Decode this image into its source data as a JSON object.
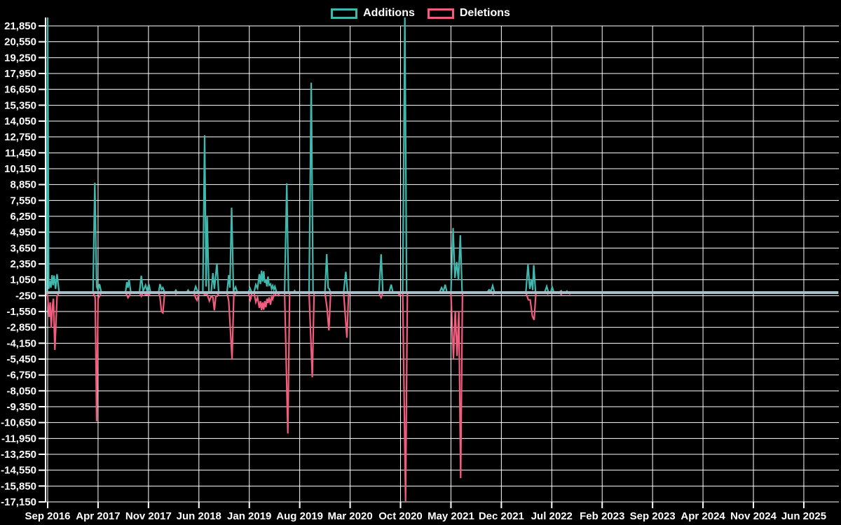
{
  "legend": {
    "items": [
      {
        "label": "Additions",
        "color": "#40b8ad"
      },
      {
        "label": "Deletions",
        "color": "#f25c7e"
      }
    ]
  },
  "chart_data": {
    "type": "line",
    "title": "",
    "background": "#000000",
    "grid_color": "#ffffff",
    "zero_line_color": "#a9bfc7",
    "x_axis": {
      "unit": "months since Sep 2016",
      "tick_labels": [
        "Sep 2016",
        "Apr 2017",
        "Nov 2017",
        "Jun 2018",
        "Jan 2019",
        "Aug 2019",
        "Mar 2020",
        "Oct 2020",
        "May 2021",
        "Dec 2021",
        "Jul 2022",
        "Feb 2023",
        "Sep 2023",
        "Apr 2024",
        "Nov 2024",
        "Jun 2025"
      ],
      "tick_month_index": [
        0,
        7,
        14,
        21,
        28,
        35,
        42,
        49,
        56,
        63,
        70,
        77,
        84,
        91,
        98,
        105
      ],
      "domain_months": [
        -0.3,
        109.8
      ]
    },
    "y_axis": {
      "min": -17150,
      "max": 21850,
      "step": 1300,
      "tick_values": [
        21850,
        20550,
        19250,
        17950,
        16650,
        15350,
        14050,
        12750,
        11450,
        10150,
        8850,
        7550,
        6250,
        4950,
        3650,
        2350,
        1050,
        -250,
        -1550,
        -2850,
        -4150,
        -5450,
        -6750,
        -8050,
        -9350,
        -10650,
        -11950,
        -13250,
        -14550,
        -15850,
        -17150
      ],
      "tick_labels": [
        "21,850",
        "20,550",
        "19,250",
        "17,950",
        "16,650",
        "15,350",
        "14,050",
        "12,750",
        "11,450",
        "10,150",
        "8,850",
        "7,550",
        "6,250",
        "4,950",
        "3,650",
        "2,350",
        "1,050",
        "-250",
        "-1,550",
        "-2,850",
        "-4,150",
        "-5,450",
        "-6,750",
        "-8,050",
        "-9,350",
        "-10,650",
        "-11,950",
        "-13,250",
        "-14,550",
        "-15,850",
        "-17,150"
      ]
    },
    "series": [
      {
        "name": "Additions",
        "color": "#40b8ad",
        "points": [
          [
            -0.3,
            0
          ],
          [
            -0.15,
            0
          ],
          [
            0,
            22550
          ],
          [
            0.15,
            300
          ],
          [
            0.3,
            950
          ],
          [
            0.45,
            400
          ],
          [
            0.6,
            1430
          ],
          [
            0.75,
            600
          ],
          [
            0.9,
            1400
          ],
          [
            1.1,
            300
          ],
          [
            1.3,
            1510
          ],
          [
            1.6,
            0
          ],
          [
            6.3,
            0
          ],
          [
            6.55,
            8990
          ],
          [
            6.8,
            500
          ],
          [
            7.0,
            200
          ],
          [
            7.2,
            700
          ],
          [
            7.45,
            0
          ],
          [
            10.8,
            0
          ],
          [
            11.0,
            860
          ],
          [
            11.15,
            400
          ],
          [
            11.3,
            1090
          ],
          [
            11.55,
            0
          ],
          [
            12.75,
            0
          ],
          [
            13.0,
            1380
          ],
          [
            13.25,
            100
          ],
          [
            13.6,
            600
          ],
          [
            13.8,
            150
          ],
          [
            14.05,
            700
          ],
          [
            14.3,
            0
          ],
          [
            15.4,
            0
          ],
          [
            15.6,
            700
          ],
          [
            15.8,
            250
          ],
          [
            16.0,
            400
          ],
          [
            16.25,
            0
          ],
          [
            17.6,
            0
          ],
          [
            17.8,
            200
          ],
          [
            18.0,
            0
          ],
          [
            19.3,
            0
          ],
          [
            19.5,
            200
          ],
          [
            19.7,
            0
          ],
          [
            20.3,
            0
          ],
          [
            20.55,
            500
          ],
          [
            20.8,
            150
          ],
          [
            21.05,
            0
          ],
          [
            21.55,
            0
          ],
          [
            21.8,
            12890
          ],
          [
            22.0,
            500
          ],
          [
            22.15,
            6200
          ],
          [
            22.4,
            0
          ],
          [
            22.7,
            0
          ],
          [
            22.95,
            1600
          ],
          [
            23.15,
            300
          ],
          [
            23.5,
            2400
          ],
          [
            23.75,
            0
          ],
          [
            24.9,
            0
          ],
          [
            25.15,
            1430
          ],
          [
            25.3,
            400
          ],
          [
            25.55,
            6960
          ],
          [
            25.8,
            100
          ],
          [
            26.1,
            460
          ],
          [
            26.35,
            0
          ],
          [
            27.85,
            0
          ],
          [
            28.1,
            360
          ],
          [
            28.35,
            0
          ],
          [
            28.65,
            0
          ],
          [
            28.9,
            650
          ],
          [
            29.15,
            350
          ],
          [
            29.4,
            1510
          ],
          [
            29.55,
            700
          ],
          [
            29.7,
            1800
          ],
          [
            29.85,
            900
          ],
          [
            30.0,
            1750
          ],
          [
            30.15,
            800
          ],
          [
            30.3,
            1060
          ],
          [
            30.45,
            500
          ],
          [
            30.6,
            1320
          ],
          [
            30.75,
            600
          ],
          [
            30.95,
            700
          ],
          [
            31.1,
            300
          ],
          [
            31.25,
            560
          ],
          [
            31.4,
            250
          ],
          [
            31.55,
            500
          ],
          [
            31.8,
            0
          ],
          [
            32.9,
            0
          ],
          [
            33.2,
            8950
          ],
          [
            33.45,
            0
          ],
          [
            34.15,
            0
          ],
          [
            34.3,
            150
          ],
          [
            34.45,
            0
          ],
          [
            36.3,
            0
          ],
          [
            36.6,
            17200
          ],
          [
            36.85,
            0
          ],
          [
            38.5,
            0
          ],
          [
            38.75,
            3150
          ],
          [
            38.95,
            400
          ],
          [
            39.1,
            300
          ],
          [
            39.3,
            0
          ],
          [
            41.1,
            0
          ],
          [
            41.4,
            1700
          ],
          [
            41.65,
            0
          ],
          [
            46.0,
            0
          ],
          [
            46.3,
            3140
          ],
          [
            46.55,
            0
          ],
          [
            47.4,
            0
          ],
          [
            47.7,
            650
          ],
          [
            47.95,
            0
          ],
          [
            49.3,
            0
          ],
          [
            49.6,
            22550
          ],
          [
            49.85,
            0
          ],
          [
            54.4,
            0
          ],
          [
            54.7,
            400
          ],
          [
            54.95,
            100
          ],
          [
            55.2,
            650
          ],
          [
            55.45,
            0
          ],
          [
            56.0,
            0
          ],
          [
            56.3,
            5290
          ],
          [
            56.55,
            1200
          ],
          [
            56.8,
            2500
          ],
          [
            57.05,
            1000
          ],
          [
            57.3,
            4700
          ],
          [
            57.55,
            0
          ],
          [
            61.0,
            0
          ],
          [
            61.3,
            230
          ],
          [
            61.55,
            100
          ],
          [
            61.8,
            570
          ],
          [
            62.05,
            0
          ],
          [
            66.4,
            0
          ],
          [
            66.7,
            2290
          ],
          [
            66.95,
            300
          ],
          [
            67.2,
            1100
          ],
          [
            67.35,
            200
          ],
          [
            67.5,
            2250
          ],
          [
            67.75,
            0
          ],
          [
            69.0,
            0
          ],
          [
            69.3,
            510
          ],
          [
            69.55,
            0
          ],
          [
            69.85,
            0
          ],
          [
            70.05,
            460
          ],
          [
            70.3,
            0
          ],
          [
            71.0,
            0
          ],
          [
            71.3,
            150
          ],
          [
            71.5,
            0
          ],
          [
            71.95,
            0
          ],
          [
            72.1,
            120
          ],
          [
            72.3,
            0
          ],
          [
            109.5,
            0
          ]
        ]
      },
      {
        "name": "Deletions",
        "color": "#f25c7e",
        "points": [
          [
            -0.3,
            0
          ],
          [
            -0.15,
            0
          ],
          [
            0.0,
            -300
          ],
          [
            0.2,
            -2000
          ],
          [
            0.35,
            -800
          ],
          [
            0.5,
            -2870
          ],
          [
            0.65,
            -1200
          ],
          [
            0.8,
            -500
          ],
          [
            1.0,
            -4700
          ],
          [
            1.3,
            -300
          ],
          [
            1.6,
            0
          ],
          [
            6.3,
            0
          ],
          [
            6.6,
            -400
          ],
          [
            6.8,
            -10550
          ],
          [
            7.0,
            -500
          ],
          [
            7.2,
            -300
          ],
          [
            7.45,
            0
          ],
          [
            10.8,
            0
          ],
          [
            11.0,
            -200
          ],
          [
            11.15,
            -420
          ],
          [
            11.35,
            -250
          ],
          [
            11.55,
            0
          ],
          [
            12.75,
            0
          ],
          [
            13.0,
            -300
          ],
          [
            13.25,
            0
          ],
          [
            13.6,
            -150
          ],
          [
            14.05,
            -200
          ],
          [
            14.3,
            0
          ],
          [
            15.4,
            0
          ],
          [
            15.6,
            -400
          ],
          [
            15.8,
            -1550
          ],
          [
            16.0,
            -1660
          ],
          [
            16.25,
            0
          ],
          [
            17.6,
            0
          ],
          [
            17.8,
            -120
          ],
          [
            18.0,
            0
          ],
          [
            20.3,
            0
          ],
          [
            20.55,
            -450
          ],
          [
            20.75,
            -630
          ],
          [
            21.05,
            0
          ],
          [
            21.55,
            0
          ],
          [
            21.8,
            -150
          ],
          [
            22.15,
            -150
          ],
          [
            22.45,
            -690
          ],
          [
            22.7,
            -300
          ],
          [
            22.95,
            -400
          ],
          [
            23.15,
            -1450
          ],
          [
            23.35,
            -300
          ],
          [
            23.55,
            -300
          ],
          [
            23.8,
            0
          ],
          [
            24.9,
            0
          ],
          [
            25.15,
            -700
          ],
          [
            25.6,
            -5450
          ],
          [
            25.85,
            -200
          ],
          [
            26.1,
            -100
          ],
          [
            26.35,
            0
          ],
          [
            27.85,
            0
          ],
          [
            28.15,
            -590
          ],
          [
            28.4,
            0
          ],
          [
            28.65,
            0
          ],
          [
            28.9,
            -790
          ],
          [
            29.15,
            -400
          ],
          [
            29.4,
            -1260
          ],
          [
            29.55,
            -700
          ],
          [
            29.7,
            -1430
          ],
          [
            29.85,
            -800
          ],
          [
            30.0,
            -1400
          ],
          [
            30.15,
            -700
          ],
          [
            30.3,
            -1200
          ],
          [
            30.45,
            -500
          ],
          [
            30.6,
            -860
          ],
          [
            30.75,
            -400
          ],
          [
            30.95,
            -1000
          ],
          [
            31.1,
            -350
          ],
          [
            31.25,
            -550
          ],
          [
            31.4,
            -200
          ],
          [
            31.55,
            -250
          ],
          [
            31.8,
            0
          ],
          [
            31.95,
            0
          ],
          [
            32.05,
            -200
          ],
          [
            32.2,
            0
          ],
          [
            32.9,
            0
          ],
          [
            33.35,
            -11550
          ],
          [
            33.6,
            0
          ],
          [
            36.3,
            0
          ],
          [
            36.75,
            -6940
          ],
          [
            37.0,
            0
          ],
          [
            38.5,
            0
          ],
          [
            38.8,
            -1300
          ],
          [
            39.05,
            -3100
          ],
          [
            39.3,
            0
          ],
          [
            41.1,
            0
          ],
          [
            41.55,
            -3700
          ],
          [
            41.8,
            0
          ],
          [
            46.0,
            0
          ],
          [
            46.3,
            -400
          ],
          [
            46.55,
            0
          ],
          [
            48.65,
            0
          ],
          [
            48.85,
            -250
          ],
          [
            49.05,
            0
          ],
          [
            49.3,
            0
          ],
          [
            49.7,
            -17100
          ],
          [
            49.95,
            0
          ],
          [
            56.0,
            0
          ],
          [
            56.35,
            -5450
          ],
          [
            56.6,
            -1500
          ],
          [
            56.85,
            -5200
          ],
          [
            57.1,
            -1500
          ],
          [
            57.35,
            -15200
          ],
          [
            57.6,
            0
          ],
          [
            61.6,
            0
          ],
          [
            61.85,
            -120
          ],
          [
            62.05,
            0
          ],
          [
            66.4,
            0
          ],
          [
            66.75,
            -590
          ],
          [
            67.0,
            -600
          ],
          [
            67.3,
            -1930
          ],
          [
            67.55,
            -2240
          ],
          [
            67.8,
            0
          ],
          [
            69.3,
            0
          ],
          [
            69.45,
            -100
          ],
          [
            69.6,
            0
          ],
          [
            71.15,
            0
          ],
          [
            71.3,
            -150
          ],
          [
            71.5,
            0
          ],
          [
            72.35,
            0
          ],
          [
            72.5,
            -100
          ],
          [
            72.7,
            0
          ],
          [
            109.5,
            0
          ]
        ]
      }
    ]
  }
}
